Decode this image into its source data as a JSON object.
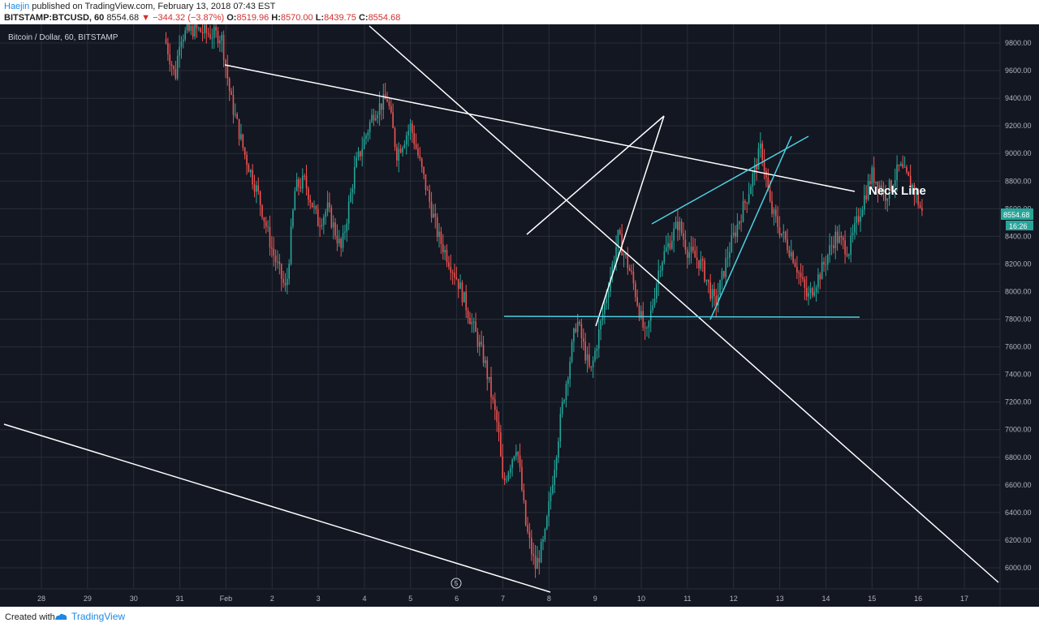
{
  "header": {
    "author": "Haejin",
    "published": "published on TradingView.com, February 13, 2018 07:43 EST",
    "symbol": "BITSTAMP:BTCUSD, 60",
    "last": "8554.68",
    "change": "−344.32 (−3.87%)",
    "open_label": "O:",
    "open": "8519.96",
    "high_label": "H:",
    "high": "8570.00",
    "low_label": "L:",
    "low": "8439.75",
    "close_label": "C:",
    "close": "8554.68"
  },
  "footer": {
    "created": "Created with",
    "brand": "TradingView",
    "logo_icon": "tradingview-logo-icon"
  },
  "chart_data": {
    "type": "candlestick",
    "title": "Bitcoin / Dollar, 60, BITSTAMP",
    "x_ticks": [
      "28",
      "29",
      "30",
      "31",
      "Feb",
      "2",
      "3",
      "4",
      "5",
      "6",
      "7",
      "8",
      "9",
      "10",
      "11",
      "12",
      "13",
      "14",
      "15",
      "16",
      "17"
    ],
    "y_ticks": [
      "9800.00",
      "9600.00",
      "9400.00",
      "9200.00",
      "9000.00",
      "8800.00",
      "8600.00",
      "8400.00",
      "8200.00",
      "8000.00",
      "7800.00",
      "7600.00",
      "7400.00",
      "7200.00",
      "7000.00",
      "6800.00",
      "6600.00",
      "6400.00",
      "6200.00",
      "6000.00"
    ],
    "ylim": [
      5870,
      9930
    ],
    "price_label": "8554.68",
    "countdown_label": "16:26",
    "wave_marker": "5",
    "annotation": "Neck Line",
    "colors": {
      "background": "#131722",
      "grid": "#2a2e39",
      "up": "#26a69a",
      "down": "#ef5350",
      "trendline": "#ffffff",
      "cyan_line": "#4dd0e1",
      "price_label_bg": "#26a69a",
      "axis_text": "#b2b5be"
    },
    "price_path": [
      [
        "30.7",
        9800
      ],
      [
        "30.9",
        9550
      ],
      [
        "31.0",
        9850
      ],
      [
        "31.3",
        9900
      ],
      [
        "31.6",
        9870
      ],
      [
        "31.9",
        9850
      ],
      [
        "Feb+0.1",
        9400
      ],
      [
        "Feb+0.4",
        9000
      ],
      [
        "Feb+0.7",
        8700
      ],
      [
        "Feb+1.0",
        8300
      ],
      [
        "Feb+1.3",
        8000
      ],
      [
        "Feb+1.5",
        8750
      ],
      [
        "Feb+1.7",
        8800
      ],
      [
        "Feb+2.0",
        8500
      ],
      [
        "Feb+2.2",
        8600
      ],
      [
        "Feb+2.5",
        8300
      ],
      [
        "Feb+2.8",
        8900
      ],
      [
        "Feb+3.0",
        9100
      ],
      [
        "Feb+3.2",
        9300
      ],
      [
        "Feb+3.5",
        9400
      ],
      [
        "Feb+3.7",
        9000
      ],
      [
        "Feb+4.0",
        9200
      ],
      [
        "Feb+4.3",
        8800
      ],
      [
        "Feb+4.6",
        8400
      ],
      [
        "Feb+5.0",
        8100
      ],
      [
        "Feb+5.3",
        7800
      ],
      [
        "Feb+5.6",
        7500
      ],
      [
        "Feb+5.9",
        7000
      ],
      [
        "Feb+6.0",
        6600
      ],
      [
        "Feb+6.3",
        6900
      ],
      [
        "Feb+6.5",
        6300
      ],
      [
        "Feb+6.7",
        6000
      ],
      [
        "Feb+6.9",
        6200
      ],
      [
        "Feb+7.1",
        6700
      ],
      [
        "Feb+7.3",
        7200
      ],
      [
        "Feb+7.6",
        7800
      ],
      [
        "Feb+7.9",
        7400
      ],
      [
        "Feb+8.2",
        7900
      ],
      [
        "Feb+8.5",
        8400
      ],
      [
        "Feb+8.8",
        8100
      ],
      [
        "Feb+9.1",
        7650
      ],
      [
        "Feb+9.4",
        8200
      ],
      [
        "Feb+9.8",
        8500
      ],
      [
        "Feb+10.0",
        8300
      ],
      [
        "Feb+10.3",
        8200
      ],
      [
        "Feb+10.6",
        7900
      ],
      [
        "Feb+10.9",
        8300
      ],
      [
        "Feb+11.3",
        8700
      ],
      [
        "Feb+11.6",
        9050
      ],
      [
        "Feb+11.8",
        8600
      ],
      [
        "Feb+12.0",
        8450
      ],
      [
        "Feb+12.3",
        8250
      ],
      [
        "Feb+12.6",
        7950
      ],
      [
        "Feb+12.9",
        8150
      ],
      [
        "Feb+13.2",
        8400
      ],
      [
        "Feb+13.5",
        8300
      ],
      [
        "Feb+13.8",
        8650
      ],
      [
        "Feb+14.0",
        8850
      ],
      [
        "Feb+14.3",
        8700
      ],
      [
        "Feb+14.6",
        8900
      ],
      [
        "Feb+14.9",
        8750
      ],
      [
        "Feb+15.1",
        8550
      ]
    ]
  }
}
